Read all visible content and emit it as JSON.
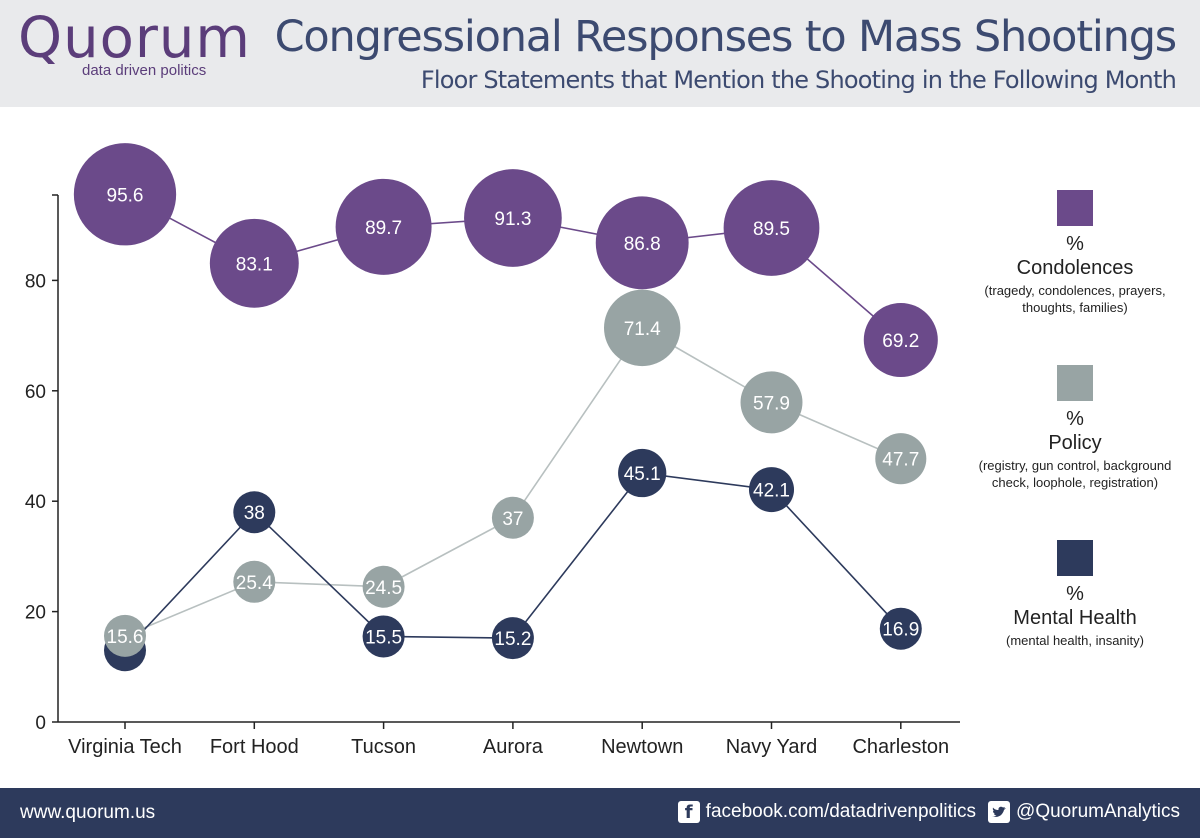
{
  "brand": {
    "name": "Quorum",
    "tagline": "data driven politics"
  },
  "title": "Congressional Responses to Mass Shootings",
  "subtitle": "Floor Statements that Mention the Shooting in the Following Month",
  "colors": {
    "condolences": "#6b4a8a",
    "policy": "#98a4a4",
    "mental_health": "#2d3a5c",
    "header_bg": "#e9eaec",
    "footer_bg": "#2d3a5c"
  },
  "legend": [
    {
      "key": "condolences",
      "pct": "%",
      "name": "Condolences",
      "desc": "(tragedy, condolences, prayers, thoughts, families)"
    },
    {
      "key": "policy",
      "pct": "%",
      "name": "Policy",
      "desc": "(registry, gun control, background check, loophole, registration)"
    },
    {
      "key": "mental_health",
      "pct": "%",
      "name": "Mental Health",
      "desc": "(mental health, insanity)"
    }
  ],
  "chart_data": {
    "type": "scatter",
    "categories": [
      "Virginia Tech",
      "Fort Hood",
      "Tucson",
      "Aurora",
      "Newtown",
      "Navy Yard",
      "Charleston"
    ],
    "series": [
      {
        "name": "Condolences",
        "values": [
          95.6,
          83.1,
          89.7,
          91.3,
          86.8,
          89.5,
          69.2
        ],
        "labels": [
          "95.6",
          "83.1",
          "89.7",
          "91.3",
          "86.8",
          "89.5",
          "69.2"
        ]
      },
      {
        "name": "Policy",
        "values": [
          15.6,
          25.4,
          24.5,
          37,
          71.4,
          57.9,
          47.7
        ],
        "labels": [
          "15.6",
          "25.4",
          "24.5",
          "37",
          "71.4",
          "57.9",
          "47.7"
        ]
      },
      {
        "name": "Mental Health",
        "values": [
          13,
          38,
          15.5,
          15.2,
          45.1,
          42.1,
          16.9
        ],
        "labels": [
          "",
          "38",
          "15.5",
          "15.2",
          "45.1",
          "42.1",
          "16.9"
        ]
      }
    ],
    "yticks": [
      0,
      20,
      40,
      60,
      80
    ],
    "ylim": [
      0,
      95
    ],
    "bubble_size": "proportional to value",
    "grid": false
  },
  "footer": {
    "url": "www.quorum.us",
    "facebook": "facebook.com/datadrivenpolitics",
    "twitter": "@QuorumAnalytics"
  }
}
